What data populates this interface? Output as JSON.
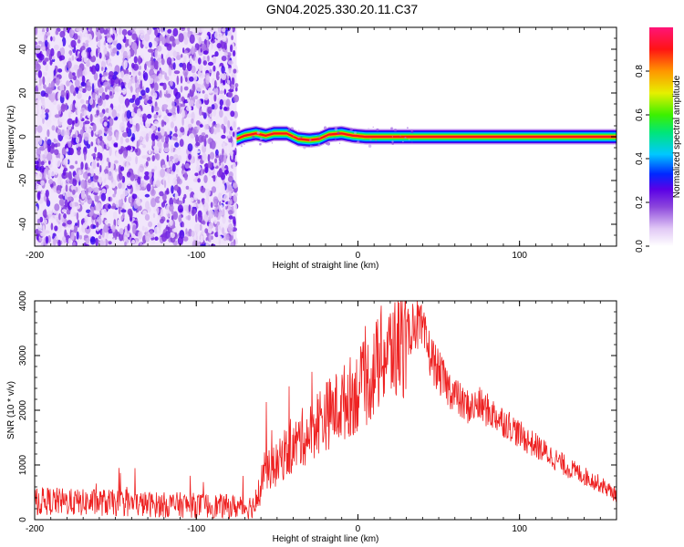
{
  "title": "GN04.2025.330.20.11.C37",
  "chart_data": [
    {
      "type": "heatmap",
      "xlabel": "Height of straight line (km)",
      "ylabel": "Frequency (Hz)",
      "xlim": [
        -200,
        160
      ],
      "ylim": [
        -50,
        50
      ],
      "xticks": [
        -200,
        -100,
        0,
        100
      ],
      "yticks": [
        -40,
        -20,
        0,
        20,
        40
      ],
      "noise_region_x": [
        -200,
        -75
      ],
      "signal_band": {
        "x_range": [
          -75,
          160
        ],
        "frequency_track": [
          {
            "x": -75,
            "y": -1
          },
          {
            "x": -70,
            "y": 0.5
          },
          {
            "x": -63,
            "y": 1.5
          },
          {
            "x": -57,
            "y": 0.5
          },
          {
            "x": -52,
            "y": 1.5
          },
          {
            "x": -44,
            "y": 1.5
          },
          {
            "x": -37,
            "y": -1
          },
          {
            "x": -30,
            "y": -1.5
          },
          {
            "x": -24,
            "y": -1
          },
          {
            "x": -18,
            "y": 1
          },
          {
            "x": -10,
            "y": 1.5
          },
          {
            "x": -3,
            "y": 0.5
          },
          {
            "x": 5,
            "y": 0
          },
          {
            "x": 20,
            "y": 0
          },
          {
            "x": 160,
            "y": 0
          }
        ]
      },
      "colorbar": {
        "label": "Normalized spectral amplitude",
        "ticks": [
          0.0,
          0.2,
          0.4,
          0.6,
          0.8
        ],
        "range": [
          0,
          1
        ]
      },
      "grid": false
    },
    {
      "type": "line",
      "xlabel": "Height of straight line (km)",
      "ylabel": "SNR (10 * v/v)",
      "xlim": [
        -200,
        160
      ],
      "ylim": [
        0,
        4000
      ],
      "xticks": [
        -200,
        -100,
        0,
        100
      ],
      "yticks": [
        0,
        1000,
        2000,
        3000,
        4000
      ],
      "grid": false,
      "series": [
        {
          "color": "#ee2222",
          "x": [
            -200,
            -190,
            -180,
            -170,
            -160,
            -150,
            -140,
            -130,
            -120,
            -110,
            -100,
            -90,
            -80,
            -70,
            -62,
            -58,
            -55,
            -50,
            -45,
            -40,
            -35,
            -30,
            -25,
            -20,
            -15,
            -10,
            -5,
            0,
            5,
            10,
            15,
            20,
            25,
            30,
            35,
            40,
            45,
            50,
            55,
            60,
            65,
            70,
            75,
            80,
            85,
            90,
            95,
            100,
            110,
            120,
            130,
            140,
            150,
            160
          ],
          "y": [
            330,
            340,
            320,
            310,
            320,
            300,
            290,
            280,
            270,
            270,
            260,
            250,
            240,
            230,
            260,
            1000,
            900,
            1000,
            1200,
            1300,
            1500,
            1550,
            1800,
            1900,
            2000,
            2100,
            2250,
            2350,
            2500,
            2700,
            3000,
            3050,
            3150,
            3300,
            3650,
            3400,
            3000,
            2700,
            2450,
            2300,
            2100,
            2050,
            2100,
            2000,
            1900,
            1800,
            1700,
            1550,
            1350,
            1150,
            950,
            800,
            650,
            450
          ]
        }
      ]
    }
  ]
}
